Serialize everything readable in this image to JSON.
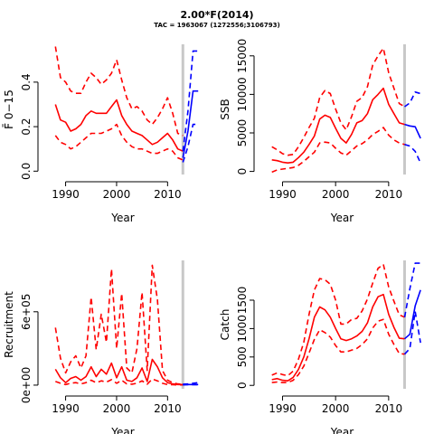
{
  "figure": {
    "title": "2.00*F(2014)",
    "subtitle": "TAC = 1963067 (1272556;3106793)"
  },
  "colors": {
    "historical": "#ff0000",
    "projection": "#0000ff",
    "ref_line": "#c8c8c8"
  },
  "chart_data": [
    {
      "type": "line",
      "panel": "fbar",
      "xlabel": "Year",
      "ylabel": "F̄ 0−15",
      "xlim": [
        1986,
        2016.5
      ],
      "ylim": [
        -0.015,
        0.57
      ],
      "xticks": [
        1990,
        2000,
        2010
      ],
      "yticks": [
        0.0,
        0.2,
        0.4
      ],
      "ytick_labels": [
        "0.0",
        "0.2",
        "0.4"
      ],
      "ref_line_x": 2013,
      "series": [
        {
          "role": "hist-median",
          "style": "solid",
          "x": [
            1988,
            1989,
            1990,
            1991,
            1992,
            1993,
            1994,
            1995,
            1996,
            1997,
            1998,
            1999,
            2000,
            2001,
            2002,
            2003,
            2004,
            2005,
            2006,
            2007,
            2008,
            2009,
            2010,
            2011,
            2012,
            2013
          ],
          "y": [
            0.3,
            0.23,
            0.22,
            0.18,
            0.19,
            0.21,
            0.25,
            0.27,
            0.26,
            0.26,
            0.26,
            0.29,
            0.32,
            0.25,
            0.21,
            0.18,
            0.17,
            0.16,
            0.14,
            0.12,
            0.13,
            0.15,
            0.17,
            0.14,
            0.1,
            0.09
          ]
        },
        {
          "role": "hist-upper",
          "style": "dashed",
          "x": [
            1988,
            1989,
            1990,
            1991,
            1992,
            1993,
            1994,
            1995,
            1996,
            1997,
            1998,
            1999,
            2000,
            2001,
            2002,
            2003,
            2004,
            2005,
            2006,
            2007,
            2008,
            2009,
            2010,
            2011,
            2012,
            2013
          ],
          "y": [
            0.56,
            0.42,
            0.4,
            0.36,
            0.35,
            0.35,
            0.4,
            0.44,
            0.42,
            0.39,
            0.41,
            0.44,
            0.5,
            0.41,
            0.33,
            0.28,
            0.29,
            0.27,
            0.23,
            0.21,
            0.24,
            0.28,
            0.33,
            0.26,
            0.17,
            0.16
          ]
        },
        {
          "role": "hist-lower",
          "style": "dashed",
          "x": [
            1988,
            1989,
            1990,
            1991,
            1992,
            1993,
            1994,
            1995,
            1996,
            1997,
            1998,
            1999,
            2000,
            2001,
            2002,
            2003,
            2004,
            2005,
            2006,
            2007,
            2008,
            2009,
            2010,
            2011,
            2012,
            2013
          ],
          "y": [
            0.16,
            0.13,
            0.12,
            0.1,
            0.11,
            0.13,
            0.15,
            0.17,
            0.17,
            0.17,
            0.18,
            0.19,
            0.21,
            0.16,
            0.13,
            0.11,
            0.1,
            0.1,
            0.09,
            0.08,
            0.08,
            0.09,
            0.1,
            0.09,
            0.06,
            0.05
          ]
        },
        {
          "role": "proj-median",
          "style": "solid",
          "x": [
            2013,
            2014,
            2015,
            2016
          ],
          "y": [
            0.06,
            0.18,
            0.36,
            0.36
          ]
        },
        {
          "role": "proj-upper",
          "style": "dashed",
          "x": [
            2013,
            2014,
            2015,
            2016
          ],
          "y": [
            0.09,
            0.27,
            0.54,
            0.54
          ]
        },
        {
          "role": "proj-lower",
          "style": "dashed",
          "x": [
            2013,
            2014,
            2015,
            2016
          ],
          "y": [
            0.04,
            0.11,
            0.21,
            0.21
          ]
        }
      ]
    },
    {
      "type": "line",
      "panel": "ssb",
      "xlabel": "Year",
      "ylabel": "SSB",
      "xlim": [
        1986,
        2016.5
      ],
      "ylim": [
        -400,
        16500
      ],
      "xticks": [
        1990,
        2000,
        2010
      ],
      "yticks": [
        0,
        5000,
        10000,
        15000
      ],
      "ytick_labels": [
        "0",
        "5000",
        "10000",
        "15000"
      ],
      "ref_line_x": 2013,
      "series": [
        {
          "role": "hist-median",
          "style": "solid",
          "x": [
            1988,
            1989,
            1990,
            1991,
            1992,
            1993,
            1994,
            1995,
            1996,
            1997,
            1998,
            1999,
            2000,
            2001,
            2002,
            2003,
            2004,
            2005,
            2006,
            2007,
            2008,
            2009,
            2010,
            2011,
            2012,
            2013
          ],
          "y": [
            1500,
            1400,
            1200,
            1100,
            1200,
            1800,
            2500,
            3500,
            4600,
            6800,
            7300,
            7000,
            5600,
            4300,
            3700,
            4800,
            6300,
            6600,
            7500,
            9300,
            10000,
            10800,
            8700,
            7500,
            6300,
            6100
          ]
        },
        {
          "role": "hist-upper",
          "style": "dashed",
          "x": [
            1988,
            1989,
            1990,
            1991,
            1992,
            1993,
            1994,
            1995,
            1996,
            1997,
            1998,
            1999,
            2000,
            2001,
            2002,
            2003,
            2004,
            2005,
            2006,
            2007,
            2008,
            2009,
            2010,
            2011,
            2012,
            2013
          ],
          "y": [
            3200,
            2800,
            2300,
            2100,
            2200,
            3200,
            4400,
            5700,
            6900,
            9600,
            10500,
            10100,
            8100,
            6300,
            5400,
            7100,
            9100,
            9600,
            11000,
            13800,
            15000,
            16000,
            12800,
            10800,
            8800,
            8400
          ]
        },
        {
          "role": "hist-lower",
          "style": "dashed",
          "x": [
            1988,
            1989,
            1990,
            1991,
            1992,
            1993,
            1994,
            1995,
            1996,
            1997,
            1998,
            1999,
            2000,
            2001,
            2002,
            2003,
            2004,
            2005,
            2006,
            2007,
            2008,
            2009,
            2010,
            2011,
            2012,
            2013
          ],
          "y": [
            -100,
            200,
            300,
            400,
            500,
            800,
            1300,
            1900,
            2500,
            3700,
            3800,
            3700,
            3000,
            2400,
            2100,
            2700,
            3300,
            3600,
            4100,
            4800,
            5200,
            5700,
            4700,
            4100,
            3700,
            3500
          ]
        },
        {
          "role": "proj-median",
          "style": "solid",
          "x": [
            2013,
            2014,
            2015,
            2016
          ],
          "y": [
            6100,
            5900,
            5800,
            4300
          ]
        },
        {
          "role": "proj-upper",
          "style": "dashed",
          "x": [
            2013,
            2014,
            2015,
            2016
          ],
          "y": [
            8400,
            8900,
            10300,
            10100
          ]
        },
        {
          "role": "proj-lower",
          "style": "dashed",
          "x": [
            2013,
            2014,
            2015,
            2016
          ],
          "y": [
            3500,
            3300,
            2600,
            1100
          ]
        }
      ]
    },
    {
      "type": "line",
      "panel": "recruitment",
      "xlabel": "Year",
      "ylabel": "Recruitment",
      "xlim": [
        1986,
        2016.5
      ],
      "ylim": [
        -30000,
        1020000
      ],
      "xticks": [
        1990,
        2000,
        2010
      ],
      "yticks": [
        0,
        600000
      ],
      "ytick_labels": [
        "0e+00",
        "6e+05"
      ],
      "ref_line_x": 2013,
      "series": [
        {
          "role": "hist-median",
          "style": "solid",
          "x": [
            1988,
            1989,
            1990,
            1991,
            1992,
            1993,
            1994,
            1995,
            1996,
            1997,
            1998,
            1999,
            2000,
            2001,
            2002,
            2003,
            2004,
            2005,
            2006,
            2007,
            2008,
            2009,
            2010,
            2011,
            2012,
            2013
          ],
          "y": [
            130000,
            60000,
            20000,
            55000,
            70000,
            40000,
            70000,
            150000,
            70000,
            130000,
            90000,
            180000,
            60000,
            150000,
            40000,
            30000,
            60000,
            140000,
            30000,
            210000,
            150000,
            60000,
            20000,
            10000,
            5000,
            5000
          ]
        },
        {
          "role": "hist-upper",
          "style": "dashed",
          "x": [
            1988,
            1989,
            1990,
            1991,
            1992,
            1993,
            1994,
            1995,
            1996,
            1997,
            1998,
            1999,
            2000,
            2001,
            2002,
            2003,
            2004,
            2005,
            2006,
            2007,
            2008,
            2009,
            2010,
            2011,
            2012,
            2013
          ],
          "y": [
            470000,
            220000,
            100000,
            190000,
            240000,
            140000,
            240000,
            720000,
            290000,
            580000,
            350000,
            950000,
            300000,
            750000,
            140000,
            100000,
            300000,
            760000,
            120000,
            980000,
            700000,
            120000,
            40000,
            20000,
            10000,
            8000
          ]
        },
        {
          "role": "hist-lower",
          "style": "dashed",
          "x": [
            1988,
            1989,
            1990,
            1991,
            1992,
            1993,
            1994,
            1995,
            1996,
            1997,
            1998,
            1999,
            2000,
            2001,
            2002,
            2003,
            2004,
            2005,
            2006,
            2007,
            2008,
            2009,
            2010,
            2011,
            2012,
            2013
          ],
          "y": [
            30000,
            15000,
            5000,
            15000,
            20000,
            10000,
            20000,
            40000,
            20000,
            35000,
            25000,
            45000,
            15000,
            40000,
            10000,
            8000,
            15000,
            35000,
            8000,
            50000,
            35000,
            15000,
            5000,
            3000,
            2000,
            2000
          ]
        },
        {
          "role": "proj-median",
          "style": "solid",
          "x": [
            2013,
            2014,
            2015,
            2016
          ],
          "y": [
            5000,
            5000,
            5000,
            5000
          ]
        },
        {
          "role": "proj-upper",
          "style": "dashed",
          "x": [
            2013,
            2014,
            2015,
            2016
          ],
          "y": [
            8000,
            10000,
            15000,
            20000
          ]
        },
        {
          "role": "proj-lower",
          "style": "dashed",
          "x": [
            2013,
            2014,
            2015,
            2016
          ],
          "y": [
            2000,
            3000,
            3000,
            3000
          ]
        }
      ]
    },
    {
      "type": "line",
      "panel": "catch",
      "xlabel": "Year",
      "ylabel": "Catch",
      "xlim": [
        1986,
        2016.5
      ],
      "ylim": [
        -60,
        2200
      ],
      "xticks": [
        1990,
        2000,
        2010
      ],
      "yticks": [
        0,
        500,
        1000,
        1500
      ],
      "ytick_labels": [
        "0",
        "500",
        "1000",
        "1500"
      ],
      "ref_line_x": 2013,
      "series": [
        {
          "role": "hist-median",
          "style": "solid",
          "x": [
            1988,
            1989,
            1990,
            1991,
            1992,
            1993,
            1994,
            1995,
            1996,
            1997,
            1998,
            1999,
            2000,
            2001,
            2002,
            2003,
            2004,
            2005,
            2006,
            2007,
            2008,
            2009,
            2010,
            2011,
            2012,
            2013
          ],
          "y": [
            100,
            120,
            90,
            80,
            140,
            280,
            500,
            820,
            1200,
            1380,
            1330,
            1200,
            1000,
            820,
            790,
            820,
            870,
            950,
            1100,
            1380,
            1560,
            1600,
            1250,
            1020,
            830,
            820
          ]
        },
        {
          "role": "hist-upper",
          "style": "dashed",
          "x": [
            1988,
            1989,
            1990,
            1991,
            1992,
            1993,
            1994,
            1995,
            1996,
            1997,
            1998,
            1999,
            2000,
            2001,
            2002,
            2003,
            2004,
            2005,
            2006,
            2007,
            2008,
            2009,
            2010,
            2011,
            2012,
            2013
          ],
          "y": [
            180,
            220,
            190,
            170,
            250,
            460,
            760,
            1250,
            1680,
            1880,
            1860,
            1780,
            1500,
            1080,
            1080,
            1160,
            1180,
            1310,
            1520,
            1800,
            2060,
            2130,
            1730,
            1480,
            1240,
            1200
          ]
        },
        {
          "role": "hist-lower",
          "style": "dashed",
          "x": [
            1988,
            1989,
            1990,
            1991,
            1992,
            1993,
            1994,
            1995,
            1996,
            1997,
            1998,
            1999,
            2000,
            2001,
            2002,
            2003,
            2004,
            2005,
            2006,
            2007,
            2008,
            2009,
            2010,
            2011,
            2012,
            2013
          ],
          "y": [
            50,
            60,
            50,
            50,
            90,
            190,
            340,
            570,
            810,
            980,
            930,
            850,
            700,
            590,
            590,
            620,
            650,
            720,
            820,
            1010,
            1130,
            1160,
            900,
            720,
            560,
            550
          ]
        },
        {
          "role": "proj-median",
          "style": "solid",
          "x": [
            2013,
            2014,
            2015,
            2016
          ],
          "y": [
            820,
            900,
            1400,
            1680
          ]
        },
        {
          "role": "proj-upper",
          "style": "dashed",
          "x": [
            2013,
            2014,
            2015,
            2016
          ],
          "y": [
            1200,
            1700,
            2150,
            2150
          ]
        },
        {
          "role": "proj-lower",
          "style": "dashed",
          "x": [
            2013,
            2014,
            2015,
            2016
          ],
          "y": [
            550,
            650,
            1300,
            750
          ]
        }
      ]
    }
  ]
}
